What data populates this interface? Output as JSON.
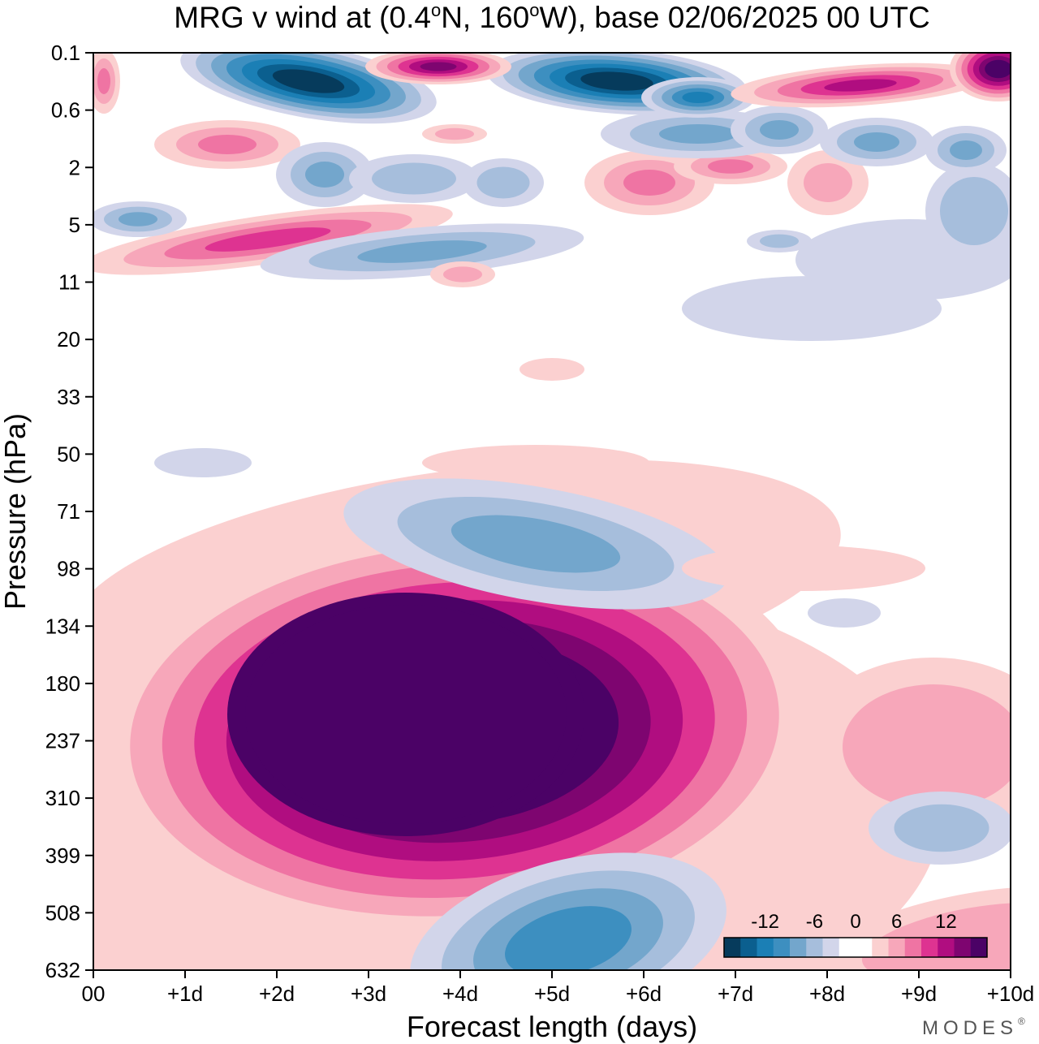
{
  "chart_data": {
    "type": "contour",
    "title_prefix": "MRG v wind at (0.4",
    "title_lat": "N, 160",
    "title_lon": "W),  base 02/06/2025  00 UTC",
    "title_deg": "o",
    "xlabel": "Forecast length (days)",
    "ylabel": "Pressure (hPa)",
    "x_ticks": [
      "00",
      "+1d",
      "+2d",
      "+3d",
      "+4d",
      "+5d",
      "+6d",
      "+7d",
      "+8d",
      "+9d",
      "+10d"
    ],
    "xlim": [
      0,
      10
    ],
    "y_ticks": [
      "0.1",
      "0.6",
      "2",
      "5",
      "11",
      "20",
      "33",
      "50",
      "71",
      "98",
      "134",
      "180",
      "237",
      "310",
      "399",
      "508",
      "632"
    ],
    "y_scale": "log-pressure (top 0.1 hPa, bottom 632 hPa)",
    "colorbar": {
      "tick_labels": [
        "-12",
        "-6",
        "0",
        "6",
        "12"
      ],
      "colors": [
        "#063b5c",
        "#0b5f8f",
        "#1b7fb5",
        "#3d8fc0",
        "#73a6cc",
        "#a6bedc",
        "#d2d5ea",
        "#ffffff",
        "#ffffff",
        "#fbd0d0",
        "#f7a7ba",
        "#ef74a3",
        "#de3391",
        "#b00d80",
        "#7e0570",
        "#4b0266"
      ],
      "placement": "bottom-right"
    },
    "features": [
      {
        "sign": "positive",
        "max_level": 16,
        "x_range": [
          1.5,
          6.5
        ],
        "y_range_hPa": [
          134,
          399
        ],
        "note": "strong positive core"
      },
      {
        "sign": "negative",
        "max_level": -8,
        "x_range": [
          4.5,
          6
        ],
        "y_range_hPa": [
          508,
          632
        ]
      },
      {
        "sign": "negative",
        "max_level": -8,
        "x_range": [
          4,
          6.5
        ],
        "y_range_hPa": [
          71,
          98
        ]
      },
      {
        "sign": "negative",
        "max_level": -16,
        "x_range": [
          2,
          7
        ],
        "y_range_hPa": [
          0.1,
          0.6
        ]
      },
      {
        "sign": "positive",
        "max_level": 16,
        "x_range": [
          9.5,
          10
        ],
        "y_range_hPa": [
          0.1,
          0.6
        ]
      }
    ]
  },
  "brand": "MODES",
  "brand_mark": "®"
}
